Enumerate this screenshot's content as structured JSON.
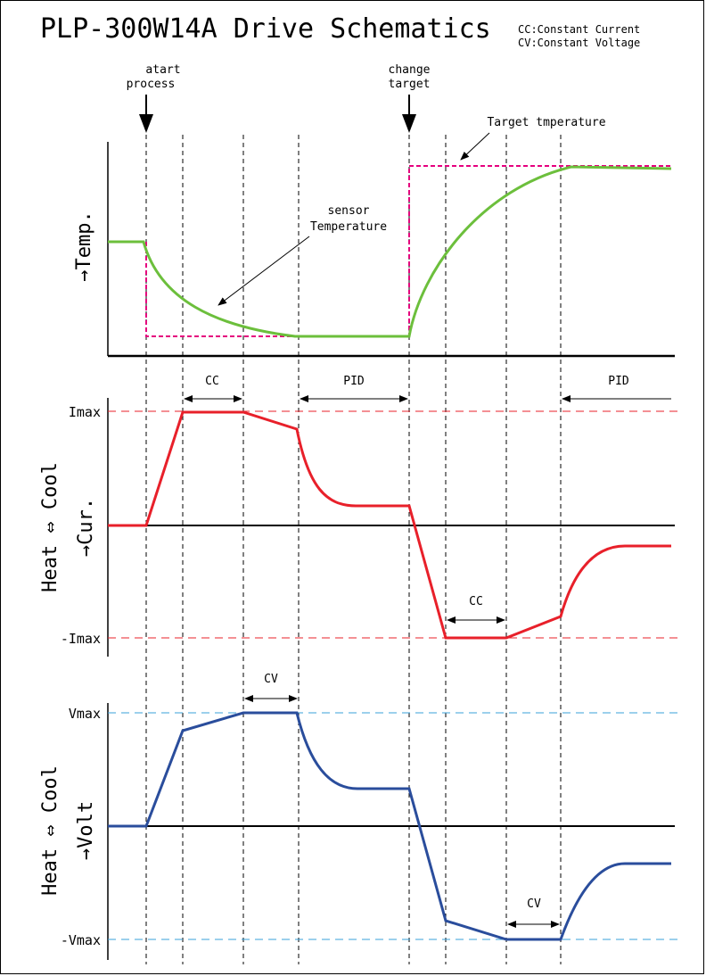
{
  "title": "PLP-300W14A  Drive Schematics",
  "legend": {
    "line1": "CC:Constant Current",
    "line2": "CV:Constant Voltage"
  },
  "events": {
    "start": {
      "line1": "atart",
      "line2": "process"
    },
    "change": {
      "line1": "change",
      "line2": "target"
    }
  },
  "temperature_panel": {
    "ylabel": "→Temp.",
    "target_label": "Target tmperature",
    "sensor_label_line1": "sensor",
    "sensor_label_line2": "Temperature",
    "colors": {
      "sensor": "#6cbf3c",
      "target": "#e5007e"
    }
  },
  "current_panel": {
    "ylabel_top": "Heat ⇔ Cool",
    "ylabel_sub": "→Cur.",
    "max_label": "Imax",
    "min_label": "-Imax",
    "cc_label_1": "CC",
    "pid_label_1": "PID",
    "cc_label_2": "CC",
    "pid_label_2": "PID",
    "colors": {
      "trace": "#e8202a",
      "limit": "#e8202a"
    }
  },
  "voltage_panel": {
    "ylabel_top": "Heat ⇔ Cool",
    "ylabel_sub": "→Volt",
    "max_label": "Vmax",
    "min_label": "-Vmax",
    "cv_label_1": "CV",
    "cv_label_2": "CV",
    "colors": {
      "trace": "#2a4d9c",
      "limit": "#3aa0d8"
    }
  }
}
